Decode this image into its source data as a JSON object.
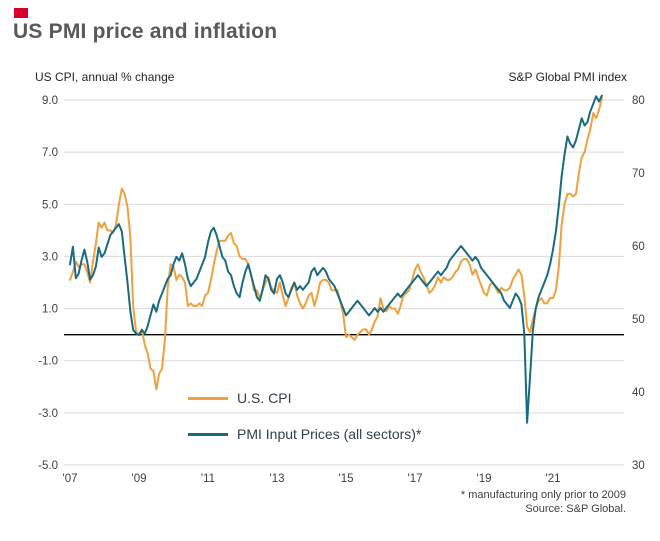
{
  "brand_color": "#d6002a",
  "chart_data": {
    "type": "line",
    "title": "US PMI price and inflation",
    "left_axis": {
      "label": "US CPI, annual % change",
      "min": -5,
      "max": 9,
      "tick_labels": [
        "9.0",
        "7.0",
        "5.0",
        "3.0",
        "1.0",
        "-1.0",
        "-3.0",
        "-5.0"
      ],
      "tick_values": [
        9,
        7,
        5,
        3,
        1,
        -1,
        -3,
        -5
      ]
    },
    "right_axis": {
      "label": "S&P Global PMI index",
      "min": 30,
      "max": 80,
      "tick_labels": [
        "80",
        "70",
        "60",
        "50",
        "40",
        "30"
      ],
      "tick_values": [
        80,
        70,
        60,
        50,
        40,
        30
      ]
    },
    "x_axis": {
      "tick_labels": [
        "'07",
        "'09",
        "'11",
        "'13",
        "'15",
        "'17",
        "'19",
        "'21"
      ],
      "tick_years": [
        2007,
        2009,
        2011,
        2013,
        2015,
        2017,
        2019,
        2021
      ],
      "start_year": 2007,
      "frequency": "monthly"
    },
    "grid": true,
    "zero_line": true,
    "legend_position": "inside-bottom-left",
    "series": [
      {
        "name": "U.S. CPI",
        "axis": "left",
        "color": "#efa13f",
        "values": [
          2.1,
          2.4,
          2.8,
          2.6,
          2.7,
          2.7,
          2.4,
          2.0,
          2.8,
          3.5,
          4.3,
          4.1,
          4.3,
          4.0,
          4.0,
          3.9,
          4.2,
          5.0,
          5.6,
          5.4,
          4.9,
          3.7,
          1.1,
          0.1,
          0.0,
          0.2,
          -0.4,
          -0.7,
          -1.3,
          -1.4,
          -2.1,
          -1.5,
          -1.3,
          -0.2,
          1.8,
          2.7,
          2.6,
          2.1,
          2.3,
          2.2,
          2.0,
          1.1,
          1.2,
          1.1,
          1.1,
          1.2,
          1.1,
          1.5,
          1.6,
          2.1,
          2.7,
          3.2,
          3.6,
          3.6,
          3.6,
          3.8,
          3.9,
          3.5,
          3.4,
          3.0,
          2.9,
          2.9,
          2.7,
          2.3,
          1.7,
          1.7,
          1.4,
          1.7,
          2.0,
          2.2,
          1.8,
          1.7,
          1.6,
          2.0,
          1.5,
          1.1,
          1.4,
          1.8,
          2.0,
          1.5,
          1.2,
          1.0,
          1.2,
          1.5,
          1.6,
          1.1,
          1.5,
          2.0,
          2.1,
          2.1,
          2.0,
          1.7,
          1.7,
          1.7,
          1.3,
          0.8,
          -0.1,
          0.0,
          -0.1,
          -0.2,
          0.0,
          0.1,
          0.2,
          0.2,
          0.0,
          0.2,
          0.5,
          0.7,
          1.4,
          1.0,
          0.9,
          1.1,
          1.0,
          1.0,
          0.8,
          1.1,
          1.5,
          1.6,
          1.7,
          2.1,
          2.5,
          2.7,
          2.4,
          2.2,
          1.9,
          1.6,
          1.7,
          1.9,
          2.2,
          2.0,
          2.2,
          2.1,
          2.1,
          2.2,
          2.4,
          2.5,
          2.8,
          2.9,
          2.9,
          2.7,
          2.3,
          2.5,
          2.2,
          1.9,
          1.6,
          1.5,
          1.9,
          2.0,
          1.8,
          1.6,
          1.8,
          1.7,
          1.7,
          1.8,
          2.1,
          2.3,
          2.5,
          2.3,
          1.5,
          0.3,
          0.1,
          0.6,
          1.0,
          1.3,
          1.4,
          1.2,
          1.2,
          1.4,
          1.4,
          1.7,
          2.6,
          4.2,
          5.0,
          5.4,
          5.4,
          5.3,
          5.4,
          6.2,
          6.8,
          7.0,
          7.5,
          7.9,
          8.5,
          8.3,
          8.6,
          9.1
        ]
      },
      {
        "name": "PMI Input Prices (all sectors)*",
        "axis": "right",
        "color": "#1a6b80",
        "values": [
          57.5,
          59.9,
          55.6,
          56.2,
          58.0,
          59.5,
          57.8,
          55.4,
          56.0,
          57.2,
          59.8,
          58.5,
          59.0,
          60.2,
          61.5,
          62.0,
          62.5,
          63.0,
          62.0,
          58.5,
          55.0,
          51.0,
          48.5,
          48.0,
          47.8,
          48.5,
          48.0,
          49.0,
          50.5,
          52.0,
          51.0,
          52.5,
          53.5,
          54.5,
          55.5,
          56.0,
          57.5,
          58.5,
          58.0,
          59.0,
          57.5,
          55.5,
          54.5,
          55.0,
          55.5,
          56.5,
          57.5,
          58.5,
          60.5,
          62.0,
          62.5,
          61.5,
          60.0,
          58.5,
          58.0,
          56.5,
          56.0,
          54.5,
          53.5,
          53.0,
          55.0,
          56.5,
          57.5,
          56.0,
          54.5,
          53.0,
          52.5,
          54.0,
          56.0,
          55.5,
          54.0,
          53.5,
          55.5,
          56.0,
          55.0,
          53.5,
          53.0,
          54.0,
          55.0,
          54.0,
          54.5,
          54.0,
          54.5,
          55.0,
          56.5,
          57.0,
          56.0,
          56.5,
          57.0,
          56.5,
          55.5,
          55.0,
          54.5,
          53.5,
          52.5,
          51.5,
          50.5,
          51.0,
          51.5,
          52.0,
          52.5,
          52.0,
          51.5,
          51.0,
          50.5,
          51.0,
          51.5,
          51.0,
          51.5,
          51.0,
          51.5,
          52.0,
          52.5,
          53.0,
          53.5,
          53.0,
          53.5,
          54.0,
          54.5,
          55.0,
          55.5,
          56.0,
          55.5,
          55.0,
          54.5,
          55.0,
          55.5,
          56.0,
          56.5,
          56.0,
          56.5,
          57.0,
          58.0,
          58.5,
          59.0,
          59.5,
          60.0,
          59.5,
          59.0,
          58.5,
          58.0,
          58.5,
          58.0,
          57.0,
          56.5,
          56.0,
          55.5,
          55.0,
          54.5,
          54.0,
          53.5,
          52.5,
          52.0,
          51.5,
          52.5,
          53.5,
          53.0,
          52.0,
          48.0,
          35.8,
          42.0,
          48.5,
          51.5,
          53.0,
          54.0,
          55.0,
          56.0,
          57.5,
          59.5,
          62.0,
          65.5,
          69.5,
          72.5,
          75.0,
          74.0,
          73.5,
          74.5,
          76.0,
          77.5,
          76.5,
          77.0,
          78.5,
          79.5,
          80.5,
          79.8,
          80.6
        ]
      }
    ],
    "footnotes": [
      "* manufacturing only prior to 2009",
      "Source: S&P Global."
    ],
    "colors": {
      "grid": "#d9d9d9",
      "zero_line": "#000000",
      "tick_text": "#404040",
      "title_text": "#595959"
    }
  }
}
